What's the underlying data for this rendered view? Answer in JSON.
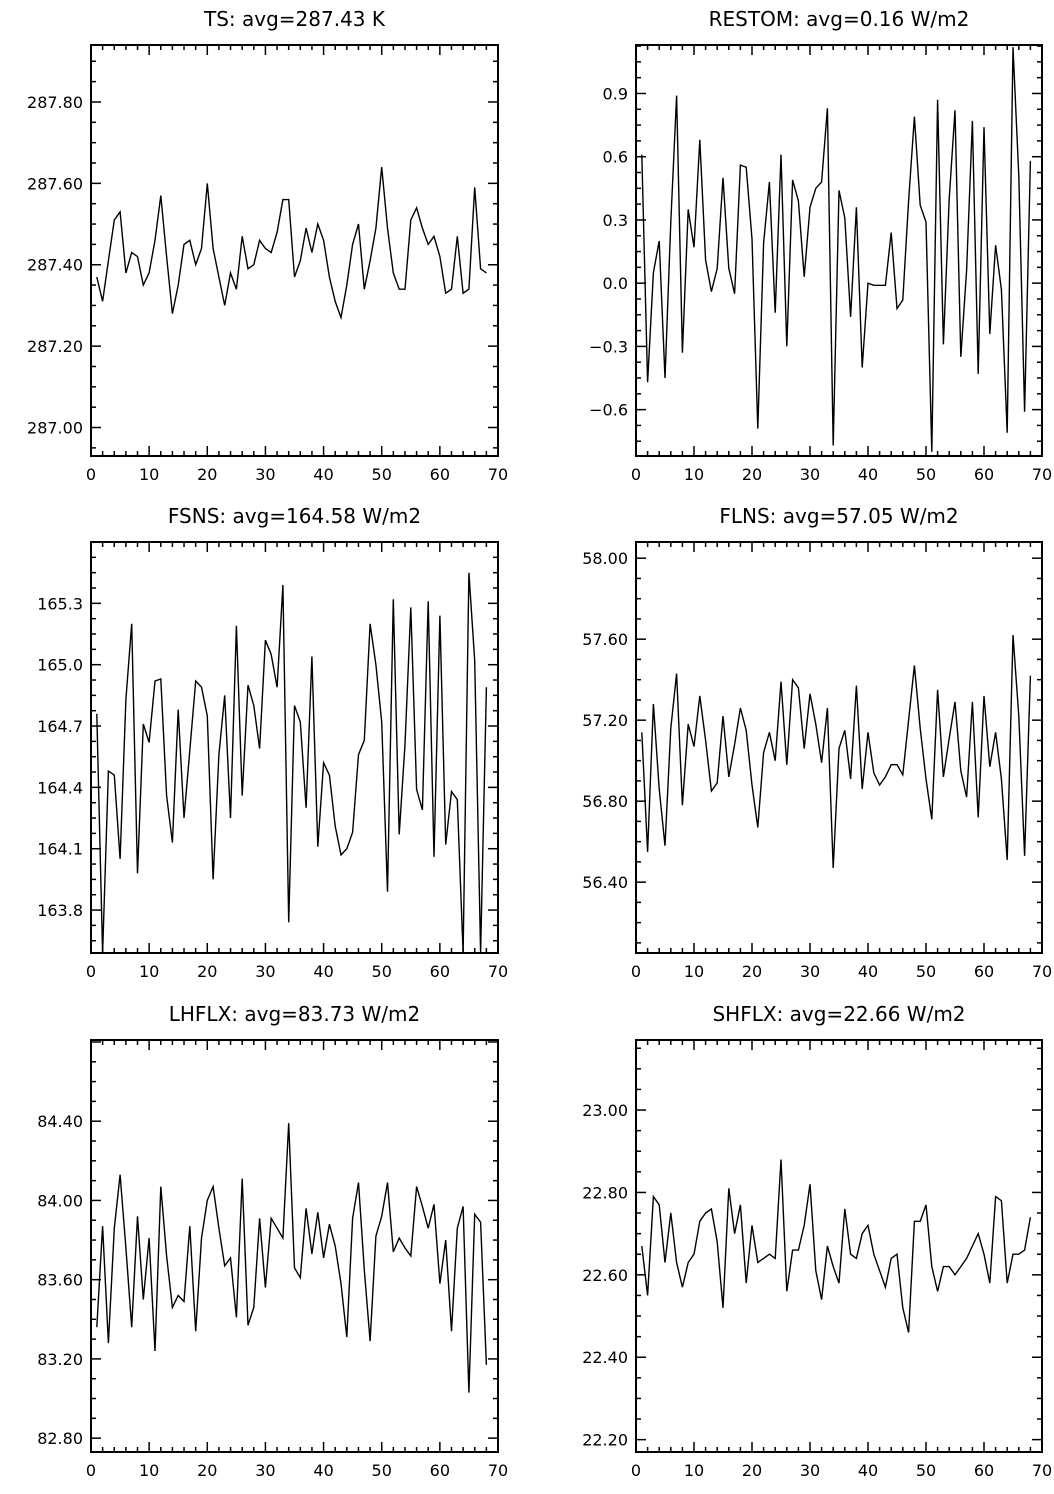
{
  "chart_data": [
    {
      "type": "line",
      "title": "TS: avg=287.43 K",
      "xlim": [
        0,
        70
      ],
      "ylim": [
        286.93,
        287.94
      ],
      "xticks": [
        0,
        10,
        20,
        30,
        40,
        50,
        60,
        70
      ],
      "xtick_labels": [
        "0",
        "10",
        "20",
        "30",
        "40",
        "50",
        "60",
        "70"
      ],
      "yticks": [
        287.0,
        287.2,
        287.4,
        287.6,
        287.8
      ],
      "ytick_labels": [
        "287.00",
        "287.20",
        "287.40",
        "287.60",
        "287.80"
      ],
      "x_start": 1,
      "values": [
        287.37,
        287.31,
        287.41,
        287.51,
        287.53,
        287.38,
        287.43,
        287.42,
        287.35,
        287.38,
        287.46,
        287.57,
        287.42,
        287.28,
        287.35,
        287.45,
        287.46,
        287.4,
        287.44,
        287.6,
        287.44,
        287.37,
        287.3,
        287.38,
        287.34,
        287.47,
        287.39,
        287.4,
        287.46,
        287.44,
        287.43,
        287.48,
        287.56,
        287.56,
        287.37,
        287.41,
        287.49,
        287.43,
        287.5,
        287.46,
        287.37,
        287.31,
        287.27,
        287.35,
        287.45,
        287.5,
        287.34,
        287.41,
        287.49,
        287.64,
        287.49,
        287.38,
        287.34,
        287.34,
        287.51,
        287.54,
        287.49,
        287.45,
        287.47,
        287.42,
        287.33,
        287.34,
        287.47,
        287.33,
        287.34,
        287.59,
        287.39,
        287.38
      ]
    },
    {
      "type": "line",
      "title": "RESTOM: avg=0.16 W/m2",
      "xlim": [
        0,
        70
      ],
      "ylim": [
        -0.82,
        1.13
      ],
      "xticks": [
        0,
        10,
        20,
        30,
        40,
        50,
        60,
        70
      ],
      "xtick_labels": [
        "0",
        "10",
        "20",
        "30",
        "40",
        "50",
        "60",
        "70"
      ],
      "yticks": [
        -0.6,
        -0.3,
        0.0,
        0.3,
        0.6,
        0.9
      ],
      "ytick_labels": [
        "−0.6",
        "−0.3",
        "0.0",
        "0.3",
        "0.6",
        "0.9"
      ],
      "x_start": 1,
      "values": [
        0.61,
        -0.47,
        0.05,
        0.2,
        -0.45,
        0.29,
        0.89,
        -0.33,
        0.35,
        0.17,
        0.68,
        0.11,
        -0.04,
        0.07,
        0.5,
        0.07,
        -0.05,
        0.56,
        0.55,
        0.21,
        -0.69,
        0.19,
        0.48,
        -0.14,
        0.61,
        -0.3,
        0.49,
        0.39,
        0.03,
        0.36,
        0.45,
        0.48,
        0.83,
        -0.77,
        0.44,
        0.31,
        -0.16,
        0.36,
        -0.4,
        0.0,
        -0.01,
        -0.01,
        -0.01,
        0.24,
        -0.12,
        -0.08,
        0.39,
        0.79,
        0.37,
        0.29,
        -0.8,
        0.87,
        -0.29,
        0.4,
        0.82,
        -0.35,
        0.06,
        0.77,
        -0.43,
        0.74,
        -0.24,
        0.18,
        -0.03,
        -0.71,
        1.12,
        0.51,
        -0.61,
        0.58
      ]
    },
    {
      "type": "line",
      "title": "FSNS: avg=164.58 W/m2",
      "xlim": [
        0,
        70
      ],
      "ylim": [
        163.59,
        165.6
      ],
      "xticks": [
        0,
        10,
        20,
        30,
        40,
        50,
        60,
        70
      ],
      "xtick_labels": [
        "0",
        "10",
        "20",
        "30",
        "40",
        "50",
        "60",
        "70"
      ],
      "yticks": [
        163.8,
        164.1,
        164.4,
        164.7,
        165.0,
        165.3
      ],
      "ytick_labels": [
        "163.8",
        "164.1",
        "164.4",
        "164.7",
        "165.0",
        "165.3"
      ],
      "x_start": 1,
      "values": [
        164.76,
        163.59,
        164.48,
        164.46,
        164.05,
        164.83,
        165.2,
        163.98,
        164.71,
        164.62,
        164.92,
        164.93,
        164.36,
        164.13,
        164.78,
        164.25,
        164.58,
        164.92,
        164.89,
        164.75,
        163.95,
        164.56,
        164.85,
        164.25,
        165.19,
        164.36,
        164.9,
        164.8,
        164.59,
        165.12,
        165.05,
        164.89,
        165.39,
        163.74,
        164.8,
        164.72,
        164.3,
        165.04,
        164.11,
        164.52,
        164.46,
        164.21,
        164.07,
        164.1,
        164.18,
        164.56,
        164.63,
        165.2,
        165.0,
        164.72,
        163.89,
        165.32,
        164.17,
        164.61,
        165.28,
        164.39,
        164.29,
        165.31,
        164.06,
        165.24,
        164.12,
        164.38,
        164.34,
        163.59,
        165.45,
        165.02,
        163.59,
        164.89
      ]
    },
    {
      "type": "line",
      "title": "FLNS: avg=57.05 W/m2",
      "xlim": [
        0,
        70
      ],
      "ylim": [
        56.05,
        58.08
      ],
      "xticks": [
        0,
        10,
        20,
        30,
        40,
        50,
        60,
        70
      ],
      "xtick_labels": [
        "0",
        "10",
        "20",
        "30",
        "40",
        "50",
        "60",
        "70"
      ],
      "yticks": [
        56.4,
        56.8,
        57.2,
        57.6,
        58.0
      ],
      "ytick_labels": [
        "56.40",
        "56.80",
        "57.20",
        "57.60",
        "58.00"
      ],
      "x_start": 1,
      "values": [
        57.14,
        56.55,
        57.28,
        56.86,
        56.58,
        57.16,
        57.43,
        56.78,
        57.18,
        57.07,
        57.32,
        57.1,
        56.85,
        56.89,
        57.22,
        56.92,
        57.08,
        57.26,
        57.15,
        56.88,
        56.67,
        57.04,
        57.14,
        57.0,
        57.39,
        56.98,
        57.4,
        57.36,
        57.06,
        57.33,
        57.18,
        56.99,
        57.26,
        56.47,
        57.06,
        57.15,
        56.91,
        57.37,
        56.86,
        57.14,
        56.94,
        56.88,
        56.92,
        56.98,
        56.98,
        56.93,
        57.2,
        57.47,
        57.16,
        56.91,
        56.71,
        57.35,
        56.92,
        57.11,
        57.29,
        56.95,
        56.82,
        57.29,
        56.72,
        57.32,
        56.97,
        57.14,
        56.91,
        56.51,
        57.62,
        57.22,
        56.53,
        57.42
      ]
    },
    {
      "type": "line",
      "title": "LHFLX: avg=83.73 W/m2",
      "xlim": [
        0,
        70
      ],
      "ylim": [
        82.73,
        84.81
      ],
      "xticks": [
        0,
        10,
        20,
        30,
        40,
        50,
        60,
        70
      ],
      "xtick_labels": [
        "0",
        "10",
        "20",
        "30",
        "40",
        "50",
        "60",
        "70"
      ],
      "yticks": [
        82.8,
        83.2,
        83.6,
        84.0,
        84.4
      ],
      "ytick_labels": [
        "82.80",
        "83.20",
        "83.60",
        "84.00",
        "84.40"
      ],
      "x_start": 1,
      "values": [
        83.36,
        83.87,
        83.28,
        83.86,
        84.13,
        83.76,
        83.36,
        83.92,
        83.5,
        83.81,
        83.24,
        84.07,
        83.72,
        83.46,
        83.52,
        83.49,
        83.87,
        83.34,
        83.81,
        84.0,
        84.07,
        83.86,
        83.67,
        83.71,
        83.41,
        84.11,
        83.37,
        83.46,
        83.91,
        83.56,
        83.91,
        83.86,
        83.81,
        84.39,
        83.66,
        83.61,
        83.96,
        83.73,
        83.94,
        83.71,
        83.88,
        83.77,
        83.58,
        83.31,
        83.91,
        84.09,
        83.65,
        83.29,
        83.82,
        83.92,
        84.09,
        83.74,
        83.81,
        83.76,
        83.72,
        84.07,
        83.97,
        83.86,
        83.98,
        83.58,
        83.8,
        83.34,
        83.86,
        83.97,
        83.03,
        83.93,
        83.89,
        83.17
      ]
    },
    {
      "type": "line",
      "title": "SHFLX: avg=22.66 W/m2",
      "xlim": [
        0,
        70
      ],
      "ylim": [
        22.17,
        23.17
      ],
      "xticks": [
        0,
        10,
        20,
        30,
        40,
        50,
        60,
        70
      ],
      "xtick_labels": [
        "0",
        "10",
        "20",
        "30",
        "40",
        "50",
        "60",
        "70"
      ],
      "yticks": [
        22.2,
        22.4,
        22.6,
        22.8,
        23.0
      ],
      "ytick_labels": [
        "22.20",
        "22.40",
        "22.60",
        "22.80",
        "23.00"
      ],
      "x_start": 1,
      "values": [
        22.67,
        22.55,
        22.79,
        22.77,
        22.63,
        22.75,
        22.63,
        22.57,
        22.63,
        22.65,
        22.73,
        22.75,
        22.76,
        22.68,
        22.52,
        22.81,
        22.7,
        22.77,
        22.58,
        22.72,
        22.63,
        22.64,
        22.65,
        22.64,
        22.88,
        22.56,
        22.66,
        22.66,
        22.72,
        22.82,
        22.61,
        22.54,
        22.67,
        22.62,
        22.58,
        22.76,
        22.65,
        22.64,
        22.7,
        22.72,
        22.65,
        22.61,
        22.57,
        22.64,
        22.65,
        22.52,
        22.46,
        22.73,
        22.73,
        22.77,
        22.62,
        22.56,
        22.62,
        22.62,
        22.6,
        22.62,
        22.64,
        22.67,
        22.7,
        22.65,
        22.58,
        22.79,
        22.78,
        22.58,
        22.65,
        22.65,
        22.66,
        22.74
      ]
    }
  ]
}
